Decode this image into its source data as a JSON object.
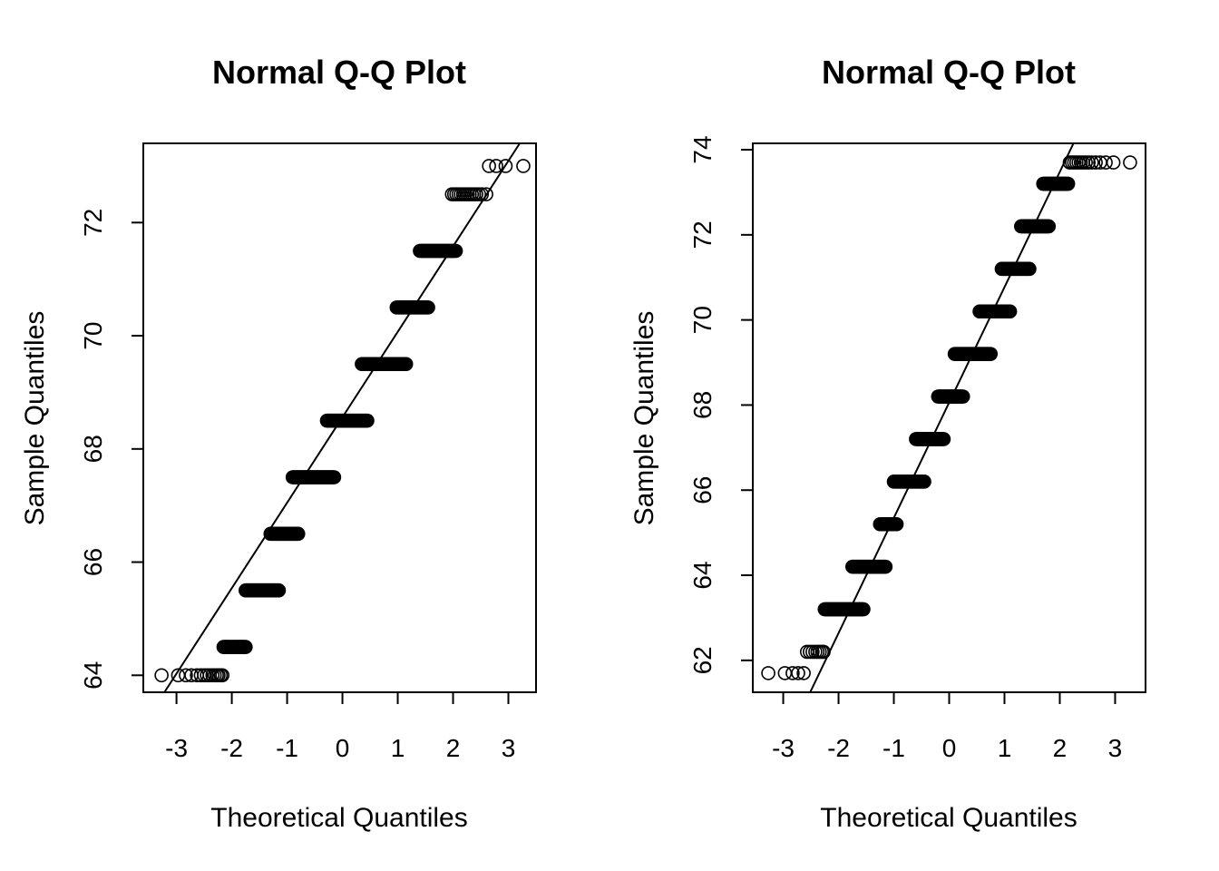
{
  "chart_data": [
    {
      "type": "scatter",
      "title": "Normal Q-Q Plot",
      "xlabel": "Theoretical Quantiles",
      "ylabel": "Sample Quantiles",
      "xlim": [
        -3.6,
        3.5
      ],
      "ylim": [
        63.7,
        73.4
      ],
      "x_ticks": [
        -3,
        -2,
        -1,
        0,
        1,
        2,
        3
      ],
      "y_ticks": [
        64,
        66,
        68,
        70,
        72
      ],
      "x_tick_labels": [
        "-3",
        "-2",
        "-1",
        "0",
        "1",
        "2",
        "3"
      ],
      "y_tick_labels": [
        "64",
        "66",
        "68",
        "70",
        "72"
      ],
      "reference_line": {
        "intercept": 68.56,
        "slope": 1.51
      },
      "series": [
        {
          "name": "points",
          "sample_groups": [
            {
              "y": 64.0,
              "x": [
                -3.27,
                -2.97,
                -2.83,
                -2.73,
                -2.63,
                -2.56,
                -2.5,
                -2.45,
                -2.4,
                -2.35,
                -2.31,
                -2.27,
                -2.24,
                -2.2,
                -2.17
              ]
            },
            {
              "y": 64.5,
              "x_range": [
                -2.15,
                -1.75
              ]
            },
            {
              "y": 65.5,
              "x_range": [
                -1.75,
                -1.15
              ]
            },
            {
              "y": 66.5,
              "x_range": [
                -1.3,
                -0.8
              ]
            },
            {
              "y": 67.5,
              "x_range": [
                -0.9,
                -0.15
              ]
            },
            {
              "y": 68.5,
              "x_range": [
                -0.28,
                0.45
              ]
            },
            {
              "y": 69.5,
              "x_range": [
                0.35,
                1.15
              ]
            },
            {
              "y": 70.5,
              "x_range": [
                0.98,
                1.55
              ]
            },
            {
              "y": 71.5,
              "x_range": [
                1.4,
                2.05
              ]
            },
            {
              "y": 72.5,
              "x": [
                1.98,
                2.02,
                2.06,
                2.1,
                2.14,
                2.18,
                2.22,
                2.26,
                2.3,
                2.34,
                2.38,
                2.42,
                2.47,
                2.52,
                2.6
              ]
            },
            {
              "y": 73.0,
              "x": [
                2.65,
                2.78,
                2.95,
                3.27
              ]
            }
          ]
        }
      ]
    },
    {
      "type": "scatter",
      "title": "Normal Q-Q Plot",
      "xlabel": "Theoretical Quantiles",
      "ylabel": "Sample Quantiles",
      "xlim": [
        -3.55,
        3.55
      ],
      "ylim": [
        61.25,
        74.15
      ],
      "x_ticks": [
        -3,
        -2,
        -1,
        0,
        1,
        2,
        3
      ],
      "y_ticks": [
        62,
        64,
        66,
        68,
        70,
        72,
        74
      ],
      "x_tick_labels": [
        "-3",
        "-2",
        "-1",
        "0",
        "1",
        "2",
        "3"
      ],
      "y_tick_labels": [
        "62",
        "64",
        "66",
        "68",
        "70",
        "72",
        "74"
      ],
      "reference_line": {
        "intercept": 68.06,
        "slope": 2.71
      },
      "series": [
        {
          "name": "points",
          "sample_groups": [
            {
              "y": 61.7,
              "x": [
                -3.27,
                -2.97,
                -2.83,
                -2.73,
                -2.63
              ]
            },
            {
              "y": 62.2,
              "x": [
                -2.57,
                -2.52,
                -2.47,
                -2.42,
                -2.38,
                -2.34,
                -2.3,
                -2.27
              ]
            },
            {
              "y": 63.2,
              "x_range": [
                -2.25,
                -1.55
              ]
            },
            {
              "y": 64.2,
              "x_range": [
                -1.75,
                -1.15
              ]
            },
            {
              "y": 65.2,
              "x_range": [
                -1.25,
                -0.95
              ]
            },
            {
              "y": 66.2,
              "x_range": [
                -1.0,
                -0.45
              ]
            },
            {
              "y": 67.2,
              "x_range": [
                -0.6,
                -0.1
              ]
            },
            {
              "y": 68.2,
              "x_range": [
                -0.2,
                0.25
              ]
            },
            {
              "y": 69.2,
              "x_range": [
                0.1,
                0.75
              ]
            },
            {
              "y": 70.2,
              "x_range": [
                0.55,
                1.1
              ]
            },
            {
              "y": 71.2,
              "x_range": [
                0.95,
                1.45
              ]
            },
            {
              "y": 72.2,
              "x_range": [
                1.3,
                1.8
              ]
            },
            {
              "y": 73.2,
              "x_range": [
                1.7,
                2.15
              ]
            },
            {
              "y": 73.7,
              "x": [
                2.18,
                2.22,
                2.26,
                2.3,
                2.34,
                2.38,
                2.42,
                2.47,
                2.52,
                2.58,
                2.65,
                2.73,
                2.83,
                2.97,
                3.27
              ]
            }
          ]
        }
      ]
    }
  ]
}
